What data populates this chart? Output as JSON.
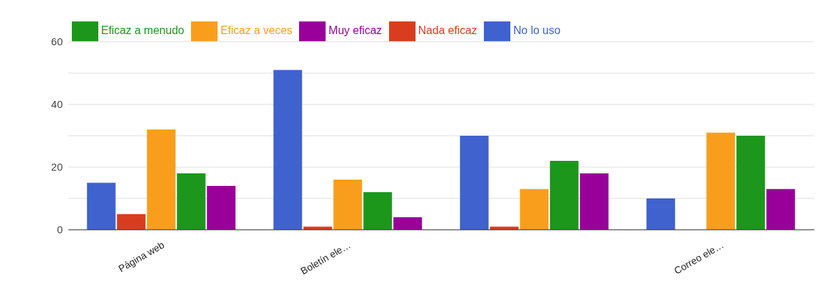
{
  "chart_data": {
    "type": "bar",
    "categories": [
      "Página web",
      "Boletín ele…",
      null,
      "Correo ele…"
    ],
    "series": [
      {
        "name": "No lo uso",
        "color": "#3f62ce",
        "values": [
          15,
          51,
          30,
          10
        ]
      },
      {
        "name": "Nada eficaz",
        "color": "#d93d1f",
        "values": [
          5,
          1,
          1,
          0
        ]
      },
      {
        "name": "Eficaz a veces",
        "color": "#f99e1c",
        "values": [
          32,
          16,
          13,
          31
        ]
      },
      {
        "name": "Eficaz a menudo",
        "color": "#1c971c",
        "values": [
          18,
          12,
          22,
          30
        ]
      },
      {
        "name": "Muy eficaz",
        "color": "#980099",
        "values": [
          14,
          4,
          18,
          13
        ]
      }
    ],
    "ylim": [
      0,
      60
    ],
    "yticks": [
      0,
      {
        "value": 10,
        "label": null
      },
      20,
      {
        "value": 30,
        "label": null
      },
      40,
      {
        "value": 50,
        "label": null
      },
      60
    ],
    "grid": "y",
    "legend": "top left"
  }
}
